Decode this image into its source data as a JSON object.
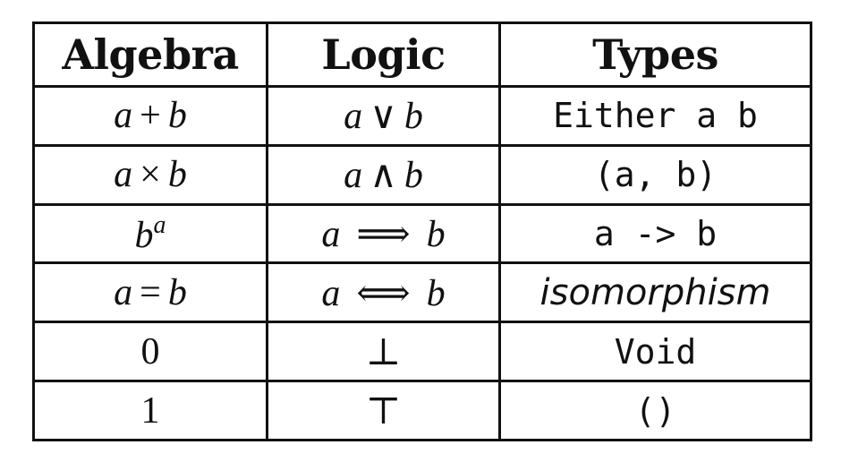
{
  "headers": [
    "Algebra",
    "Logic",
    "Types"
  ],
  "rows": [
    {
      "algebra": {
        "a": "a",
        "op": "+",
        "b": "b"
      },
      "logic": {
        "a": "a",
        "op": "∨",
        "b": "b"
      },
      "types": "Either a b"
    },
    {
      "algebra": {
        "a": "a",
        "op": "×",
        "b": "b"
      },
      "logic": {
        "a": "a",
        "op": "∧",
        "b": "b"
      },
      "types": "(a, b)"
    },
    {
      "algebra": {
        "base": "b",
        "exp": "a"
      },
      "logic": {
        "a": "a",
        "op": "⟹",
        "b": "b"
      },
      "types": "a -> b"
    },
    {
      "algebra": {
        "a": "a",
        "op": "=",
        "b": "b"
      },
      "logic": {
        "a": "a",
        "op": "⟺",
        "b": "b"
      },
      "types": "isomorphism"
    },
    {
      "algebra": "0",
      "logic": "⊥",
      "types": "Void"
    },
    {
      "algebra": "1",
      "logic": "⊤",
      "types": "()"
    }
  ]
}
